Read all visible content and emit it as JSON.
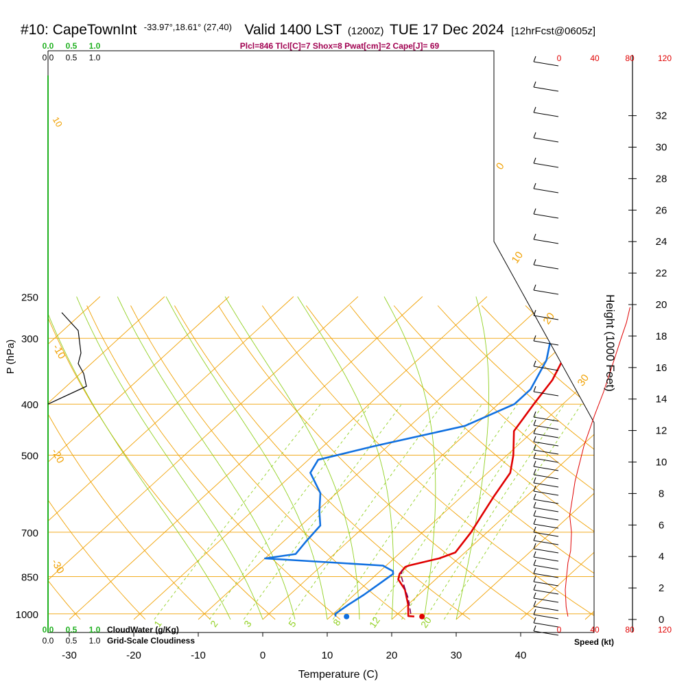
{
  "header": {
    "station": "#10: CapeTownInt",
    "coords": "-33.97°,18.61° (27,40)",
    "valid": "Valid 1400 LST",
    "zulu": "(1200Z)",
    "date": "TUE 17 Dec 2024",
    "forecast": "[12hrFcst@0605z]"
  },
  "indices": "Plcl=846 Tlcl[C]=7 Shox=8 Pwat[cm]=2 Cape[J]= 69",
  "colors": {
    "isotherm": "#f0a000",
    "dry_adiabat": "#f0a000",
    "moist_adiabat": "#90d020",
    "mixing_ratio": "#90d020",
    "temperature": "#e00000",
    "dewpoint": "#1070e0",
    "parcel": "#800050",
    "cloudiness": "#000000",
    "cloud_water": "#20b020",
    "wind_speed": "#e00000",
    "indices_text": "#a00050"
  },
  "chart_data": {
    "type": "line",
    "title": "#10: CapeTownInt -33.97°,18.61° (27,40) Valid 1400 LST (1200Z) TUE 17 Dec 2024 [12hrFcst@0605z]",
    "xlabel": "Temperature (C)",
    "ylabel": "P (hPa)",
    "x_ticks": [
      "-30",
      "-20",
      "-10",
      "0",
      "10",
      "20",
      "30",
      "40"
    ],
    "y_ticks": [
      "250",
      "300",
      "400",
      "500",
      "700",
      "850",
      "1000"
    ],
    "y_scale": "log",
    "xlim": [
      -33.5,
      36
    ],
    "ylim": [
      1025,
      250
    ],
    "height_axis": {
      "label": "Height (1000 Feet)",
      "ticks": [
        "0",
        "2",
        "4",
        "6",
        "8",
        "10",
        "12",
        "14",
        "16",
        "18",
        "20",
        "22",
        "24",
        "26",
        "28",
        "30",
        "32"
      ]
    },
    "speed_axis": {
      "label": "Speed (kt)",
      "top_ticks": [
        "0",
        "40",
        "80",
        "120"
      ],
      "bottom_ticks": [
        "0",
        "40",
        "80",
        "120"
      ]
    },
    "cloud_axes": {
      "cloud_water_label": "CloudWater (g/Kg)",
      "cloudiness_label": "Grid-Scale Cloudiness",
      "ticks": [
        "0.0",
        "0.5",
        "1.0"
      ]
    },
    "isotherm_labels": [
      "0",
      "10",
      "20",
      "30",
      "-10",
      "-20",
      "-30"
    ],
    "dry_adiabat_labels": [
      "10"
    ],
    "mixing_ratio_labels": [
      "1",
      "2",
      "3",
      "5",
      "8",
      "12",
      "20"
    ],
    "series": [
      {
        "name": "Temperature",
        "points": [
          [
            -2.3,
            270
          ],
          [
            2.5,
            330
          ],
          [
            4.3,
            360
          ],
          [
            5.5,
            400
          ],
          [
            7.0,
            450
          ],
          [
            11.0,
            500
          ],
          [
            13.5,
            540
          ],
          [
            15.0,
            600
          ],
          [
            16.3,
            650
          ],
          [
            17.5,
            700
          ],
          [
            18.5,
            765
          ],
          [
            17.0,
            785
          ],
          [
            13.5,
            810
          ],
          [
            13.2,
            815
          ],
          [
            13.5,
            840
          ],
          [
            14.2,
            860
          ],
          [
            17.0,
            900
          ],
          [
            20.0,
            960
          ],
          [
            22.0,
            1010
          ],
          [
            23.0,
            1012
          ]
        ]
      },
      {
        "name": "Dewpoint",
        "points": [
          [
            -6.5,
            270
          ],
          [
            -3.0,
            300
          ],
          [
            0.0,
            330
          ],
          [
            2.5,
            375
          ],
          [
            2.5,
            400
          ],
          [
            -1.5,
            440
          ],
          [
            -12.0,
            480
          ],
          [
            -18.5,
            510
          ],
          [
            -17.5,
            540
          ],
          [
            -12.5,
            590
          ],
          [
            -9.5,
            640
          ],
          [
            -7.0,
            680
          ],
          [
            -6.5,
            730
          ],
          [
            -6.0,
            770
          ],
          [
            -10.0,
            785
          ],
          [
            9.5,
            810
          ],
          [
            12.0,
            830
          ],
          [
            12.5,
            840
          ],
          [
            12.0,
            880
          ],
          [
            11.5,
            920
          ],
          [
            10.8,
            960
          ],
          [
            10.3,
            1000
          ],
          [
            10.8,
            1012
          ]
        ]
      },
      {
        "name": "Parcel",
        "points": [
          [
            22.0,
            1000
          ],
          [
            19.0,
            935
          ],
          [
            16.5,
            890
          ],
          [
            14.0,
            846
          ],
          [
            13.2,
            825
          ]
        ]
      },
      {
        "name": "Cloudiness",
        "points": [
          [
            0.25,
            268
          ],
          [
            0.55,
            290
          ],
          [
            0.6,
            320
          ],
          [
            0.55,
            335
          ],
          [
            0.65,
            350
          ],
          [
            0.7,
            370
          ],
          [
            0.0,
            400
          ]
        ]
      },
      {
        "name": "Wind Speed",
        "points": [
          [
            10,
            1012
          ],
          [
            8,
            970
          ],
          [
            7,
            900
          ],
          [
            10,
            800
          ],
          [
            13,
            760
          ],
          [
            14,
            700
          ],
          [
            12,
            650
          ],
          [
            18,
            560
          ],
          [
            28,
            480
          ],
          [
            40,
            420
          ],
          [
            50,
            380
          ],
          [
            62,
            330
          ],
          [
            70,
            300
          ],
          [
            76,
            280
          ],
          [
            80,
            262
          ]
        ]
      }
    ],
    "surface_markers": [
      {
        "name": "Surface temperature",
        "x": 24.2,
        "y": 1012
      },
      {
        "name": "Surface dewpoint",
        "x": 12.5,
        "y": 1012
      }
    ]
  }
}
